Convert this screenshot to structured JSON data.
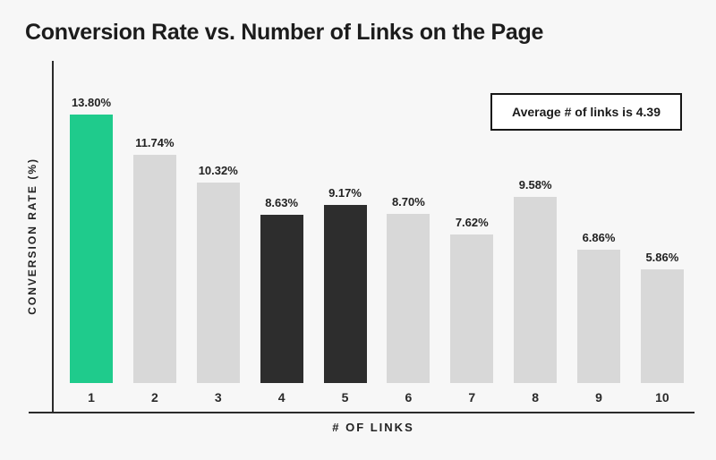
{
  "chart_data": {
    "type": "bar",
    "title": "Conversion Rate vs. Number of Links on the Page",
    "xlabel": "# OF LINKS",
    "ylabel": "CONVERSION RATE (%)",
    "annotation": "Average # of links is 4.39",
    "categories": [
      "1",
      "2",
      "3",
      "4",
      "5",
      "6",
      "7",
      "8",
      "9",
      "10"
    ],
    "values": [
      13.8,
      11.74,
      10.32,
      8.63,
      9.17,
      8.7,
      7.62,
      9.58,
      6.86,
      5.86
    ],
    "value_labels": [
      "13.80%",
      "11.74%",
      "10.32%",
      "8.63%",
      "9.17%",
      "8.70%",
      "7.62%",
      "9.58%",
      "6.86%",
      "5.86%"
    ],
    "bar_color_keys": [
      "highlight",
      "default",
      "default",
      "dark",
      "dark",
      "default",
      "default",
      "default",
      "default",
      "default"
    ],
    "colors": {
      "default": "#d8d8d8",
      "highlight": "#1fcb8c",
      "dark": "#2d2d2d",
      "axis": "#2b2b2b",
      "text": "#222222",
      "background": "#f7f7f7",
      "annotation_border": "#161616",
      "annotation_bg": "#ffffff"
    },
    "legend": null,
    "grid": false,
    "ylim": [
      0,
      14
    ]
  }
}
